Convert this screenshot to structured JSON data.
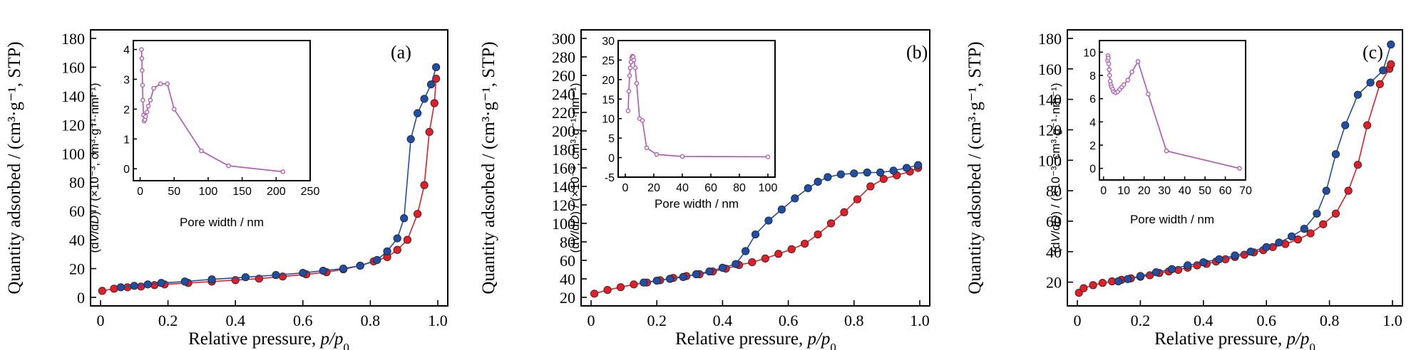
{
  "colors": {
    "adsorption": "#e41e26",
    "desorption": "#1f4ea5",
    "inset": "#b054b6",
    "axis": "#000000"
  },
  "chart_data": [
    {
      "type": "line",
      "panel_label": "(a)",
      "xlabel": "Relative pressure, ",
      "xlabel_italic": "p/p",
      "xlabel_sub": "0",
      "ylabel": "Quantity adsorbed / (cm³·g⁻¹, STP)",
      "xlim": [
        0,
        1.0
      ],
      "ylim": [
        0,
        180
      ],
      "xticks": [
        "0",
        "0.2",
        "0.4",
        "0.6",
        "0.8",
        "1.0"
      ],
      "yticks": [
        "0",
        "20",
        "40",
        "60",
        "80",
        "100",
        "120",
        "140",
        "160",
        "180"
      ],
      "series": [
        {
          "role": "adsorption",
          "x": [
            0.005,
            0.04,
            0.08,
            0.12,
            0.16,
            0.19,
            0.26,
            0.33,
            0.4,
            0.47,
            0.54,
            0.61,
            0.67,
            0.72,
            0.77,
            0.81,
            0.85,
            0.88,
            0.91,
            0.94,
            0.96,
            0.975,
            0.99,
            0.995
          ],
          "y": [
            4.5,
            6,
            7,
            7.5,
            8.5,
            9,
            10,
            11,
            12,
            13,
            14.5,
            16,
            17.5,
            19.5,
            22,
            25,
            28,
            33,
            40,
            58,
            78,
            115,
            135,
            152
          ]
        },
        {
          "role": "desorption",
          "x": [
            0.995,
            0.98,
            0.96,
            0.94,
            0.92,
            0.9,
            0.88,
            0.85,
            0.82,
            0.77,
            0.72,
            0.66,
            0.6,
            0.52,
            0.43,
            0.33,
            0.25,
            0.18,
            0.14,
            0.1,
            0.06
          ],
          "y": [
            160,
            148,
            138,
            128,
            110,
            55,
            41,
            32,
            26,
            22,
            20,
            18.5,
            17,
            15.5,
            14,
            12.5,
            11,
            10,
            9,
            8,
            7
          ]
        }
      ],
      "inset": {
        "xlabel": "Pore width / nm",
        "ylabel_pre": "(d",
        "ylabel_v": "V",
        "ylabel_mid": "/d",
        "ylabel_d": "D",
        "ylabel_post": ") / (×10⁻³, cm³·g⁻¹·nm⁻¹)",
        "xlim": [
          -10,
          250
        ],
        "ylim": [
          -0.4,
          4.3
        ],
        "xticks": [
          "0",
          "50",
          "100",
          "150",
          "200",
          "250"
        ],
        "yticks": [
          "0",
          "1",
          "2",
          "3",
          "4"
        ],
        "x": [
          2,
          2.5,
          3,
          3.5,
          4,
          5,
          6,
          7,
          8,
          10,
          12,
          15,
          20,
          30,
          40,
          50,
          90,
          130,
          210
        ],
        "y": [
          4.0,
          3.7,
          3.3,
          2.8,
          2.3,
          1.8,
          1.6,
          1.65,
          1.75,
          1.9,
          2.1,
          2.3,
          2.7,
          2.85,
          2.85,
          2.0,
          0.6,
          0.1,
          -0.1
        ]
      }
    },
    {
      "type": "line",
      "panel_label": "(b)",
      "xlabel": "Relative pressure, ",
      "xlabel_italic": "p/p",
      "xlabel_sub": "0",
      "ylabel": "Quantity adsorbed / (cm³·g⁻¹, STP)",
      "xlim": [
        0,
        1.0
      ],
      "ylim": [
        20,
        300
      ],
      "xticks": [
        "0",
        "0.2",
        "0.4",
        "0.6",
        "0.8",
        "1.0"
      ],
      "yticks": [
        "20",
        "40",
        "60",
        "80",
        "100",
        "120",
        "140",
        "160",
        "180",
        "200",
        "220",
        "240",
        "260",
        "280",
        "300"
      ],
      "series": [
        {
          "role": "adsorption",
          "x": [
            0.01,
            0.05,
            0.09,
            0.13,
            0.17,
            0.21,
            0.25,
            0.29,
            0.33,
            0.37,
            0.41,
            0.45,
            0.49,
            0.53,
            0.57,
            0.61,
            0.65,
            0.69,
            0.73,
            0.77,
            0.81,
            0.85,
            0.89,
            0.93,
            0.97,
            0.995
          ],
          "y": [
            24,
            28,
            31,
            34,
            36,
            38.5,
            41,
            43,
            45,
            48,
            51,
            55,
            58,
            62,
            67,
            72,
            78,
            88,
            100,
            112,
            126,
            140,
            148,
            152,
            156,
            160
          ]
        },
        {
          "role": "desorption",
          "x": [
            0.995,
            0.96,
            0.92,
            0.88,
            0.84,
            0.8,
            0.76,
            0.72,
            0.69,
            0.66,
            0.62,
            0.58,
            0.54,
            0.5,
            0.47,
            0.44,
            0.4,
            0.36,
            0.32,
            0.28,
            0.24,
            0.2,
            0.16
          ],
          "y": [
            163,
            160,
            157,
            155,
            155,
            154,
            153,
            150,
            145,
            138,
            127,
            115,
            103,
            88,
            70,
            56,
            52,
            48,
            45,
            42,
            40,
            38,
            36
          ]
        }
      ],
      "inset": {
        "xlabel": "Pore width / nm",
        "ylabel_pre": "(d",
        "ylabel_v": "V",
        "ylabel_mid": "/d",
        "ylabel_d": "D",
        "ylabel_post": ") / (×10⁻³, cm³·g⁻¹·nm⁻¹)",
        "xlim": [
          -5,
          105
        ],
        "ylim": [
          -5,
          30
        ],
        "xticks": [
          "0",
          "20",
          "40",
          "60",
          "80",
          "100"
        ],
        "yticks": [
          "-5",
          "0",
          "5",
          "10",
          "15",
          "20",
          "25",
          "30"
        ],
        "x": [
          2,
          2.5,
          3,
          3.5,
          4,
          4.5,
          5,
          5.5,
          6,
          7,
          8,
          10,
          12,
          15,
          22,
          40,
          100
        ],
        "y": [
          12,
          17,
          21,
          23,
          24.5,
          25.5,
          26,
          25.8,
          25,
          23,
          19,
          10,
          9.5,
          2.5,
          0.8,
          0.3,
          0.2
        ]
      }
    },
    {
      "type": "line",
      "panel_label": "(c)",
      "xlabel": "Relative pressure, ",
      "xlabel_italic": "p/p",
      "xlabel_sub": "0",
      "ylabel": "Quantity adsorbed / (cm³·g⁻¹, STP)",
      "xlim": [
        0,
        1.0
      ],
      "ylim": [
        10,
        180
      ],
      "xticks": [
        "0",
        "0.2",
        "0.4",
        "0.6",
        "0.8",
        "1.0"
      ],
      "yticks": [
        "20",
        "40",
        "60",
        "80",
        "100",
        "120",
        "140",
        "160",
        "180"
      ],
      "series": [
        {
          "role": "adsorption",
          "x": [
            0.005,
            0.02,
            0.05,
            0.08,
            0.11,
            0.14,
            0.17,
            0.2,
            0.23,
            0.26,
            0.29,
            0.32,
            0.35,
            0.38,
            0.41,
            0.44,
            0.47,
            0.5,
            0.53,
            0.56,
            0.59,
            0.62,
            0.66,
            0.7,
            0.74,
            0.78,
            0.82,
            0.86,
            0.89,
            0.92,
            0.96,
            0.99,
            0.995
          ],
          "y": [
            13,
            16,
            18,
            19.5,
            20.5,
            21.5,
            22.5,
            23.5,
            24.5,
            26,
            27,
            28,
            29.5,
            31,
            32,
            33.5,
            35,
            36.5,
            38,
            39.5,
            41,
            43,
            45,
            48,
            52,
            58,
            65,
            80,
            97,
            123,
            150,
            160,
            163
          ]
        },
        {
          "role": "desorption",
          "x": [
            0.995,
            0.97,
            0.93,
            0.89,
            0.85,
            0.82,
            0.79,
            0.76,
            0.72,
            0.68,
            0.64,
            0.6,
            0.55,
            0.5,
            0.45,
            0.4,
            0.35,
            0.3,
            0.25,
            0.2,
            0.16,
            0.13
          ],
          "y": [
            176,
            159,
            151,
            143,
            123,
            104,
            80,
            65,
            55,
            50,
            46,
            43,
            40,
            37.5,
            35,
            33,
            31,
            28.5,
            26.5,
            24,
            22,
            20.5
          ]
        }
      ],
      "inset": {
        "xlabel": "Pore width / nm",
        "ylabel_pre": "(d",
        "ylabel_v": "V",
        "ylabel_mid": "/d",
        "ylabel_d": "D",
        "ylabel_post": ") / (×10⁻³, cm³·g⁻¹·nm⁻¹)",
        "xlim": [
          -2,
          70
        ],
        "ylim": [
          -1,
          11
        ],
        "xticks": [
          "0",
          "10",
          "20",
          "30",
          "40",
          "50",
          "60",
          "70"
        ],
        "yticks": [
          "0",
          "2",
          "4",
          "6",
          "8",
          "10"
        ],
        "x": [
          2,
          2.2,
          2.4,
          2.6,
          2.8,
          3,
          3.3,
          3.6,
          4,
          4.5,
          5,
          6,
          7,
          8,
          9,
          10,
          12,
          14,
          17,
          22,
          31,
          67
        ],
        "y": [
          9.3,
          9.7,
          9.5,
          9.0,
          8.5,
          8.0,
          7.5,
          7.2,
          7.0,
          6.8,
          6.6,
          6.5,
          6.6,
          6.8,
          7.0,
          7.2,
          7.6,
          8.3,
          9.2,
          6.4,
          1.5,
          0
        ]
      }
    }
  ]
}
